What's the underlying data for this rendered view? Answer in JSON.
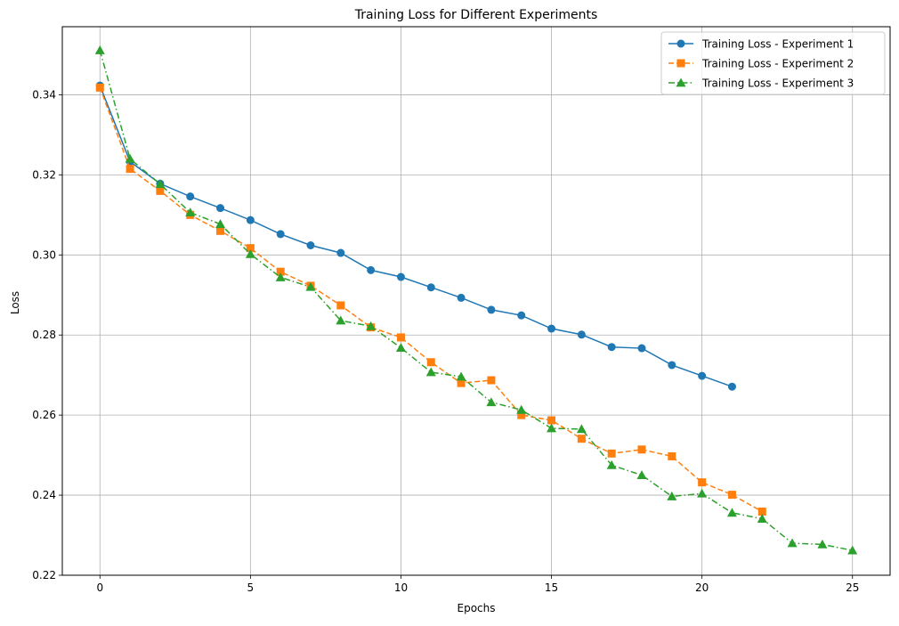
{
  "chart_data": {
    "type": "line",
    "title": "Training Loss for Different Experiments",
    "xlabel": "Epochs",
    "ylabel": "Loss",
    "xlim": [
      -1.25,
      26.25
    ],
    "ylim": [
      0.22,
      0.357
    ],
    "xticks": [
      0,
      5,
      10,
      15,
      20,
      25
    ],
    "yticks": [
      0.22,
      0.24,
      0.26,
      0.28,
      0.3,
      0.32,
      0.34
    ],
    "ytick_labels": [
      "0.22",
      "0.24",
      "0.26",
      "0.28",
      "0.30",
      "0.32",
      "0.34"
    ],
    "grid": true,
    "legend_position": "top-right",
    "series": [
      {
        "name": "Training Loss - Experiment 1",
        "color": "#1f77b4",
        "linestyle": "solid",
        "marker": "circle",
        "x": [
          0,
          1,
          2,
          3,
          4,
          5,
          6,
          7,
          8,
          9,
          10,
          11,
          12,
          13,
          14,
          15,
          16,
          17,
          18,
          19,
          20,
          21
        ],
        "y": [
          0.3423,
          0.3233,
          0.3178,
          0.3146,
          0.3117,
          0.3087,
          0.3052,
          0.3024,
          0.3005,
          0.2962,
          0.2945,
          0.2919,
          0.2893,
          0.2863,
          0.2849,
          0.2816,
          0.2801,
          0.277,
          0.2767,
          0.2725,
          0.2698,
          0.2671
        ]
      },
      {
        "name": "Training Loss - Experiment 2",
        "color": "#ff7f0e",
        "linestyle": "dashed",
        "marker": "square",
        "x": [
          0,
          1,
          2,
          3,
          4,
          5,
          6,
          7,
          8,
          9,
          10,
          11,
          12,
          13,
          14,
          15,
          16,
          17,
          18,
          19,
          20,
          21,
          22
        ],
        "y": [
          0.3418,
          0.3215,
          0.316,
          0.31,
          0.306,
          0.3017,
          0.2958,
          0.2923,
          0.2874,
          0.2819,
          0.2794,
          0.2732,
          0.268,
          0.2687,
          0.26,
          0.2587,
          0.2541,
          0.2504,
          0.2514,
          0.2497,
          0.2432,
          0.2401,
          0.2359
        ]
      },
      {
        "name": "Training Loss - Experiment 3",
        "color": "#2ca02c",
        "linestyle": "dashdot",
        "marker": "triangle",
        "x": [
          0,
          1,
          2,
          3,
          4,
          5,
          6,
          7,
          8,
          9,
          10,
          11,
          12,
          13,
          14,
          15,
          16,
          17,
          18,
          19,
          20,
          21,
          22,
          23,
          24,
          25
        ],
        "y": [
          0.3511,
          0.324,
          0.3177,
          0.3106,
          0.3077,
          0.3002,
          0.2944,
          0.292,
          0.2836,
          0.2822,
          0.2768,
          0.2707,
          0.2696,
          0.2632,
          0.2613,
          0.2567,
          0.2565,
          0.2475,
          0.245,
          0.2397,
          0.2404,
          0.2356,
          0.2341,
          0.228,
          0.2277,
          0.2262
        ]
      }
    ]
  }
}
